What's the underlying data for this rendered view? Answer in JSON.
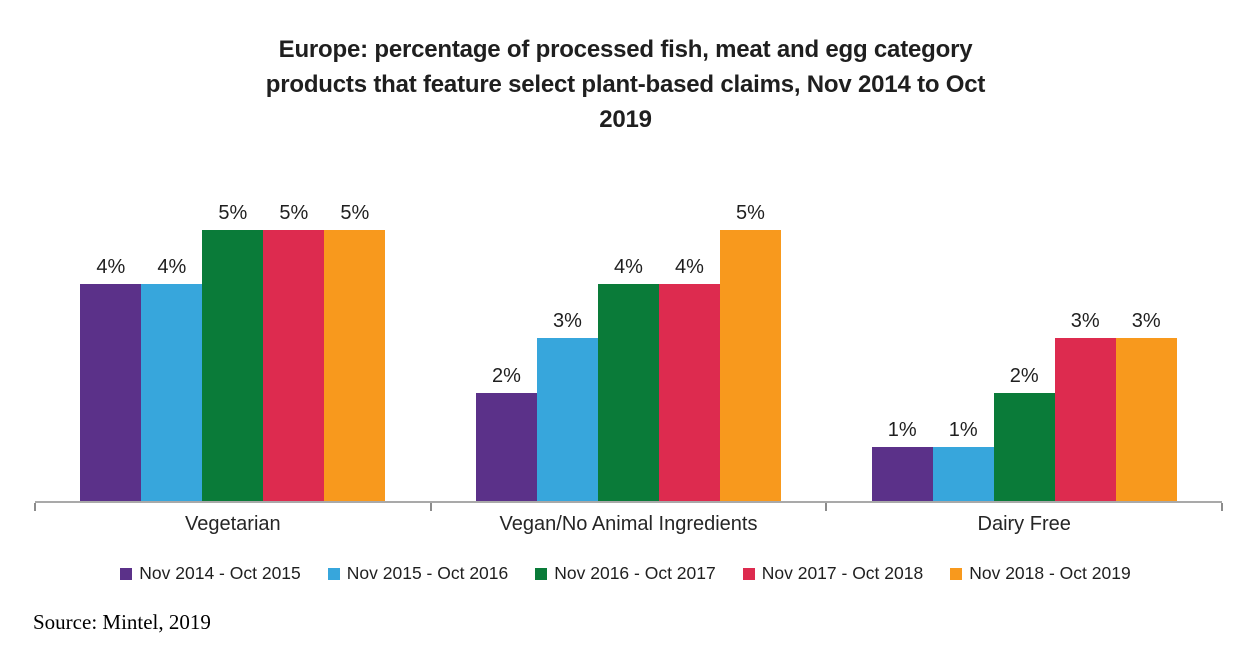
{
  "title_lines": [
    "Europe: percentage of processed fish, meat and egg category",
    "products that feature select plant-based claims, Nov 2014 to Oct",
    "2019"
  ],
  "source": "Source: Mintel, 2019",
  "chart_data": {
    "type": "bar",
    "title": "Europe: percentage of processed fish, meat and egg category products that feature select plant-based claims, Nov 2014 to Oct 2019",
    "categories": [
      "Vegetarian",
      "Vegan/No Animal Ingredients",
      "Dairy Free"
    ],
    "series": [
      {
        "name": "Nov 2014 - Oct 2015",
        "color": "#5B3189",
        "values": [
          4,
          2,
          1
        ]
      },
      {
        "name": "Nov 2015 - Oct 2016",
        "color": "#37A6DC",
        "values": [
          4,
          3,
          1
        ]
      },
      {
        "name": "Nov 2016 - Oct 2017",
        "color": "#0A7B39",
        "values": [
          5,
          4,
          2
        ]
      },
      {
        "name": "Nov 2017 - Oct 2018",
        "color": "#DD2B4F",
        "values": [
          5,
          4,
          3
        ]
      },
      {
        "name": "Nov 2018 - Oct 2019",
        "color": "#F8991D",
        "values": [
          5,
          5,
          3
        ]
      }
    ],
    "value_label_suffix": "%",
    "ylim": [
      0,
      6
    ],
    "grid": false,
    "y_axis_shown": false,
    "legend_position": "bottom",
    "axis_color": "#a9a9a9"
  }
}
